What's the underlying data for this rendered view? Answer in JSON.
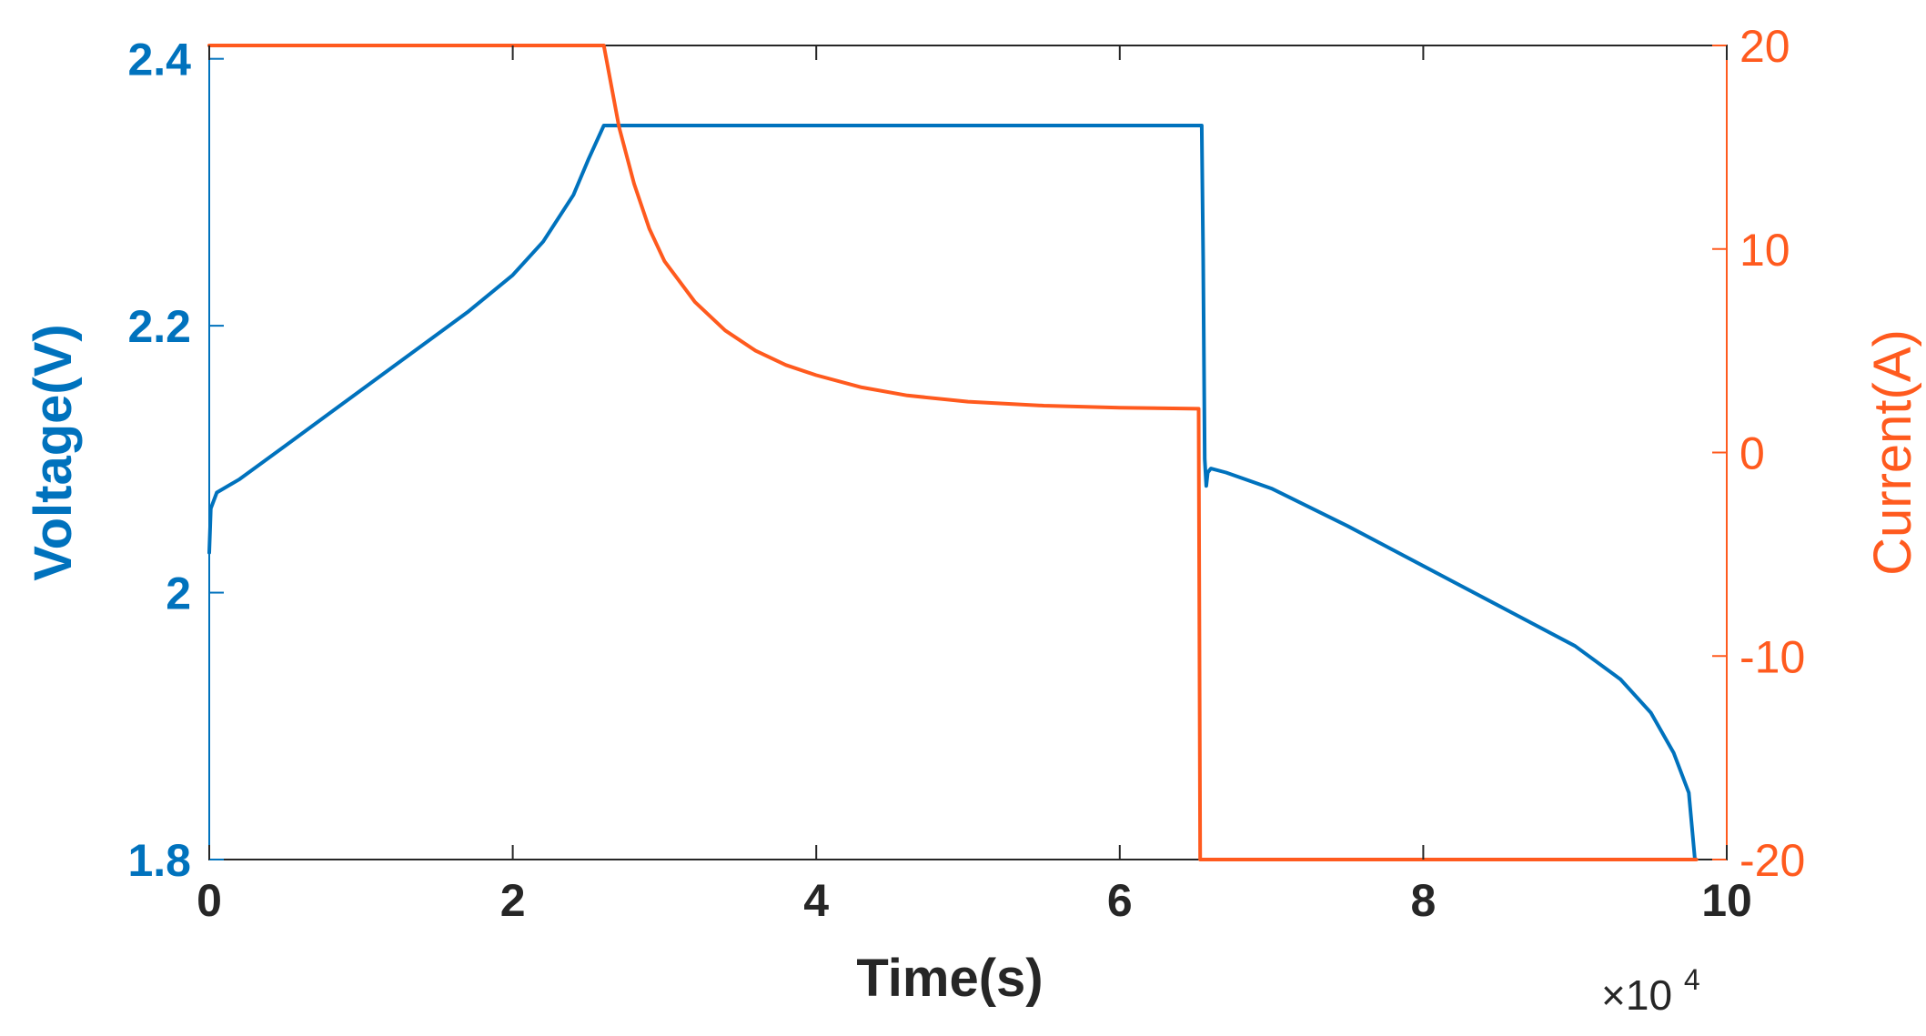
{
  "chart_data": {
    "type": "line",
    "xlabel": "Time(s)",
    "x_multiplier_label": "×10",
    "x_multiplier_exponent": "4",
    "xlim": [
      0,
      100000
    ],
    "x_ticks": [
      0,
      20000,
      40000,
      60000,
      80000,
      100000
    ],
    "x_tick_labels": [
      "0",
      "2",
      "4",
      "6",
      "8",
      "10"
    ],
    "y_left": {
      "label": "Voltage(V)",
      "lim": [
        1.8,
        2.41
      ],
      "ticks": [
        1.8,
        2.0,
        2.2,
        2.4
      ],
      "tick_labels": [
        "1.8",
        "2",
        "2.2",
        "2.4"
      ],
      "color": "#0072BD"
    },
    "y_right": {
      "label": "Current(A)",
      "lim": [
        -20,
        20
      ],
      "ticks": [
        -20,
        -10,
        0,
        10,
        20
      ],
      "tick_labels": [
        "-20",
        "-10",
        "0",
        "10",
        "20"
      ],
      "color": "#FF5A1E"
    },
    "grid": false,
    "legend": "none",
    "series": [
      {
        "axis": "left",
        "color": "#0072BD",
        "x": [
          0,
          100,
          500,
          2000,
          5000,
          8000,
          11000,
          14000,
          17000,
          20000,
          22000,
          24000,
          25000,
          26000,
          30000,
          40000,
          50000,
          60000,
          65400,
          65500,
          65600,
          65700,
          65800,
          66000,
          67000,
          70000,
          75000,
          80000,
          85000,
          90000,
          93000,
          95000,
          96500,
          97500,
          97900
        ],
        "y": [
          2.03,
          2.063,
          2.075,
          2.085,
          2.11,
          2.135,
          2.16,
          2.185,
          2.21,
          2.238,
          2.263,
          2.298,
          2.325,
          2.35,
          2.35,
          2.35,
          2.35,
          2.35,
          2.35,
          2.25,
          2.1,
          2.08,
          2.09,
          2.093,
          2.09,
          2.078,
          2.05,
          2.02,
          1.99,
          1.96,
          1.935,
          1.91,
          1.88,
          1.85,
          1.8
        ]
      },
      {
        "axis": "right",
        "color": "#FF5A1E",
        "x": [
          0,
          26000,
          27000,
          28000,
          29000,
          30000,
          32000,
          34000,
          36000,
          38000,
          40000,
          43000,
          46000,
          50000,
          55000,
          60000,
          65200,
          65300,
          65400,
          98000
        ],
        "y": [
          20,
          20,
          16,
          13.2,
          11,
          9.4,
          7.4,
          6.0,
          5.0,
          4.3,
          3.8,
          3.2,
          2.8,
          2.5,
          2.3,
          2.2,
          2.15,
          -20,
          -20,
          -20
        ]
      }
    ]
  }
}
